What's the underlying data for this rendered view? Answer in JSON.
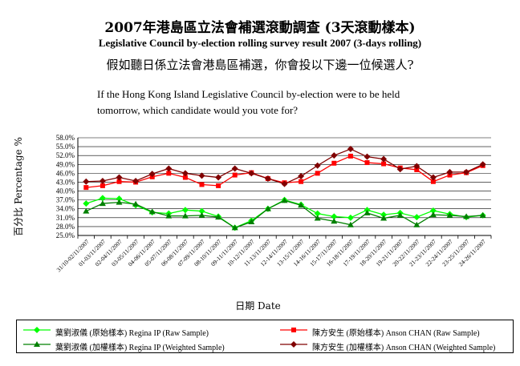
{
  "header": {
    "title_zh": "2007年港島區立法會補選滾動調查 (3天滾動樣本)",
    "title_en": "Legislative Council by-election rolling survey result 2007 (3-days rolling)",
    "question_zh": "假如聽日係立法會港島區補選，你會投以下邊一位候選人?",
    "question_en": "If the Hong Kong Island Legislative Council by-election were to be held tomorrow, which candidate would you vote for?"
  },
  "chart_data": {
    "type": "line",
    "ylabel": "百分比 Percentage %",
    "xlabel": "日期 Date",
    "ylim": [
      25.0,
      58.0
    ],
    "yticks": [
      "58.0%",
      "55.0%",
      "52.0%",
      "49.0%",
      "46.0%",
      "43.0%",
      "40.0%",
      "37.0%",
      "34.0%",
      "31.0%",
      "28.0%",
      "25.0%"
    ],
    "ytick_values": [
      58,
      55,
      52,
      49,
      46,
      43,
      40,
      37,
      34,
      31,
      28,
      25
    ],
    "grid": true,
    "categories": [
      "31/10-02/11/2007",
      "01-03/11/2007",
      "02-04/11/2007",
      "03-05/11/2007",
      "04-06/11/2007",
      "05-07/11/2007",
      "06-08/11/2007",
      "07-09/11/2007",
      "08-10/11/2007",
      "09-11/11/2007",
      "10-12/11/2007",
      "11-13/11/2007",
      "12-14/11/2007",
      "13-15/11/2007",
      "14-16/11/2007",
      "15-17/11/2007",
      "16-18/11/2007",
      "17-19/11/2007",
      "18-20/11/2007",
      "19-21/11/2007",
      "20-22/11/2007",
      "21-23/11/2007",
      "22-24/11/2007",
      "23-25/11/2007",
      "24-26/11/2007"
    ],
    "series": [
      {
        "name": "葉劉淑儀 (原始樣本) Regina IP (Raw Sample)",
        "color": "#00ff00",
        "marker": "diamond",
        "values": [
          35.8,
          37.6,
          37.4,
          35.2,
          32.8,
          32.4,
          33.6,
          33.2,
          31.4,
          27.6,
          30.0,
          34.0,
          37.0,
          35.4,
          32.4,
          31.4,
          31.0,
          33.6,
          32.0,
          32.6,
          31.2,
          33.4,
          32.2,
          31.2,
          31.8
        ]
      },
      {
        "name": "陳方安生 (原始樣本) Anson CHAN (Raw Sample)",
        "color": "#ff0000",
        "marker": "square",
        "values": [
          41.2,
          41.8,
          43.2,
          43.0,
          44.8,
          46.0,
          44.6,
          42.2,
          41.8,
          45.4,
          46.2,
          44.2,
          42.8,
          43.2,
          46.0,
          49.4,
          51.8,
          49.6,
          49.2,
          47.8,
          47.2,
          43.2,
          45.4,
          46.2,
          48.6
        ]
      },
      {
        "name": "葉劉淑儀 (加權樣本) Regina IP (Weighted Sample)",
        "color": "#008000",
        "marker": "triangle",
        "values": [
          33.2,
          35.8,
          36.2,
          35.6,
          33.0,
          31.6,
          31.6,
          31.8,
          31.2,
          27.6,
          29.6,
          34.0,
          36.8,
          35.2,
          30.8,
          29.8,
          28.6,
          32.6,
          30.8,
          31.8,
          28.6,
          32.0,
          31.8,
          31.4,
          31.8
        ]
      },
      {
        "name": "陳方安生 (加權樣本) Anson CHAN (Weighted Sample)",
        "color": "#800000",
        "marker": "diamond",
        "values": [
          43.2,
          43.4,
          44.6,
          43.4,
          45.8,
          47.6,
          46.0,
          45.2,
          44.6,
          47.6,
          46.0,
          44.2,
          42.4,
          45.0,
          48.6,
          52.0,
          54.2,
          51.6,
          50.8,
          47.4,
          48.4,
          44.6,
          46.4,
          46.4,
          49.0
        ]
      }
    ]
  }
}
